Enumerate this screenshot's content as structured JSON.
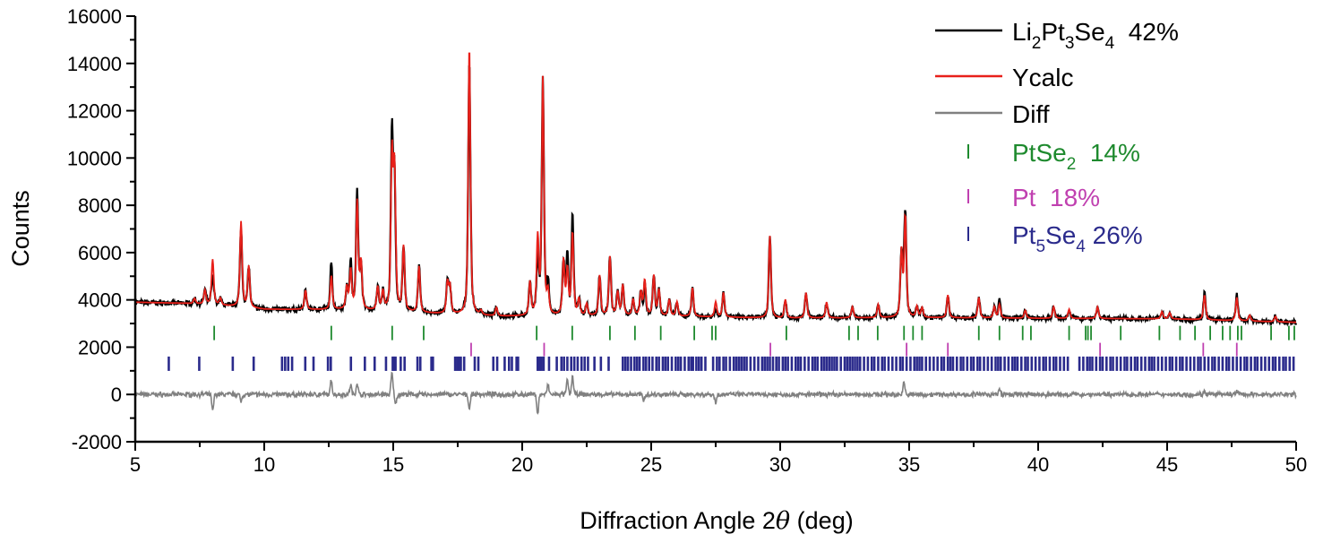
{
  "chart_data": {
    "type": "line",
    "xlabel_parts": [
      "Diffraction Angle 2",
      "θ",
      " (deg)"
    ],
    "ylabel": "Counts",
    "xlim": [
      5,
      50
    ],
    "ylim": [
      -2000,
      16000
    ],
    "x_ticks": [
      "5",
      "10",
      "15",
      "20",
      "25",
      "30",
      "35",
      "40",
      "45",
      "50"
    ],
    "y_ticks": [
      "-2000",
      "0",
      "2000",
      "4000",
      "6000",
      "8000",
      "10000",
      "12000",
      "14000",
      "16000"
    ],
    "grid": false,
    "legend_position": "top-right",
    "colors": {
      "obs": "#000000",
      "calc": "#e8201a",
      "diff": "#808080",
      "PtSe2": "#1e8a2e",
      "Pt": "#c040b0",
      "Pt5Se4": "#2b2b8c"
    },
    "legend": {
      "obs": [
        "Li",
        "2",
        "Pt",
        "3",
        "Se",
        "4",
        "  42%"
      ],
      "calc": "Ycalc",
      "diff": "Diff",
      "PtSe2": [
        "PtSe",
        "2",
        "  14%"
      ],
      "Pt": "Pt  18%",
      "Pt5Se4": [
        "Pt",
        "5",
        "Se",
        "4",
        " 26%"
      ]
    },
    "background": [
      [
        5,
        3900
      ],
      [
        7,
        3850
      ],
      [
        8.5,
        3750
      ],
      [
        10,
        3600
      ],
      [
        13,
        3580
      ],
      [
        16,
        3450
      ],
      [
        19,
        3300
      ],
      [
        25,
        3320
      ],
      [
        30,
        3220
      ],
      [
        35,
        3250
      ],
      [
        40,
        3220
      ],
      [
        45,
        3200
      ],
      [
        50,
        3050
      ]
    ],
    "peaks": [
      [
        7.3,
        4050
      ],
      [
        7.7,
        4400
      ],
      [
        8.0,
        5700
      ],
      [
        8.3,
        4050
      ],
      [
        9.1,
        7300
      ],
      [
        9.4,
        5400
      ],
      [
        11.6,
        4400
      ],
      [
        12.6,
        5000
      ],
      [
        13.2,
        4500
      ],
      [
        13.35,
        5200
      ],
      [
        13.6,
        8100
      ],
      [
        13.75,
        5500
      ],
      [
        14.4,
        4500
      ],
      [
        14.6,
        4300
      ],
      [
        14.95,
        9900
      ],
      [
        15.05,
        9200
      ],
      [
        15.4,
        6200
      ],
      [
        16.0,
        5400
      ],
      [
        17.1,
        4700
      ],
      [
        17.2,
        4500
      ],
      [
        17.95,
        14800
      ],
      [
        18.4,
        3500
      ],
      [
        19.0,
        3650
      ],
      [
        20.3,
        4700
      ],
      [
        20.6,
        6500
      ],
      [
        20.8,
        13300
      ],
      [
        21.0,
        4200
      ],
      [
        21.6,
        5600
      ],
      [
        21.75,
        5200
      ],
      [
        21.95,
        6800
      ],
      [
        22.2,
        4000
      ],
      [
        22.5,
        3800
      ],
      [
        23.0,
        5000
      ],
      [
        23.4,
        5800
      ],
      [
        23.7,
        4300
      ],
      [
        23.9,
        4600
      ],
      [
        24.3,
        4000
      ],
      [
        24.6,
        4300
      ],
      [
        24.75,
        4800
      ],
      [
        25.1,
        5000
      ],
      [
        25.3,
        4400
      ],
      [
        25.7,
        4000
      ],
      [
        26.0,
        3900
      ],
      [
        26.6,
        4500
      ],
      [
        27.5,
        3900
      ],
      [
        27.8,
        4300
      ],
      [
        29.6,
        6700
      ],
      [
        30.2,
        4000
      ],
      [
        31.0,
        4300
      ],
      [
        31.8,
        3900
      ],
      [
        32.8,
        3700
      ],
      [
        33.8,
        3800
      ],
      [
        34.7,
        6000
      ],
      [
        34.85,
        7500
      ],
      [
        35.3,
        3700
      ],
      [
        35.5,
        3650
      ],
      [
        36.5,
        4200
      ],
      [
        37.7,
        4100
      ],
      [
        38.3,
        3700
      ],
      [
        38.5,
        3800
      ],
      [
        39.5,
        3550
      ],
      [
        40.6,
        3700
      ],
      [
        41.2,
        3600
      ],
      [
        42.3,
        3700
      ],
      [
        44.8,
        3500
      ],
      [
        45.1,
        3450
      ],
      [
        46.45,
        4200
      ],
      [
        47.7,
        4100
      ],
      [
        48.2,
        3350
      ],
      [
        49.2,
        3300
      ]
    ],
    "diff_features": [
      [
        8.0,
        -700
      ],
      [
        9.1,
        -300
      ],
      [
        12.6,
        600
      ],
      [
        13.35,
        400
      ],
      [
        13.6,
        500
      ],
      [
        14.95,
        900
      ],
      [
        15.1,
        -400
      ],
      [
        17.95,
        -600
      ],
      [
        20.6,
        -800
      ],
      [
        21.0,
        400
      ],
      [
        21.75,
        600
      ],
      [
        21.95,
        800
      ],
      [
        24.7,
        -250
      ],
      [
        27.5,
        -350
      ],
      [
        34.8,
        500
      ],
      [
        38.5,
        200
      ],
      [
        46.45,
        150
      ],
      [
        47.7,
        150
      ]
    ],
    "reflections": {
      "PtSe2": [
        8.06,
        12.6,
        14.96,
        16.18,
        20.56,
        21.94,
        23.4,
        24.37,
        25.37,
        26.67,
        27.36,
        27.5,
        30.24,
        32.67,
        33.02,
        33.78,
        34.8,
        35.15,
        35.5,
        37.7,
        38.5,
        39.4,
        39.72,
        41.2,
        41.84,
        41.93,
        42.05,
        43.2,
        44.7,
        45.5,
        46.08,
        46.67,
        47.15,
        47.44,
        47.74,
        47.88,
        49.03,
        49.72,
        49.93
      ],
      "Pt": [
        18.02,
        20.85,
        29.62,
        34.9,
        36.5,
        42.4,
        46.4,
        47.7
      ],
      "Pt5Se4": [
        6.3,
        7.48,
        8.78,
        9.59,
        10.69,
        10.81,
        10.93,
        11.08,
        11.59,
        11.91,
        12.47,
        12.58,
        13.36,
        13.9,
        14.28,
        14.72,
        14.98,
        15.03,
        15.09,
        15.29,
        15.44,
        15.94,
        16.05,
        16.48,
        16.54,
        17.4,
        17.48,
        17.55,
        17.62,
        17.75,
        18.16,
        18.3,
        18.88,
        19.03,
        19.32,
        19.49,
        19.6,
        19.78,
        19.84,
        20.6,
        20.68,
        20.75,
        20.83,
        21.04,
        21.34,
        21.52,
        21.62,
        21.75,
        21.9,
        22.02,
        22.15,
        22.3,
        22.42,
        22.55,
        22.8,
        23.05,
        23.35,
        23.9,
        24.0,
        24.1,
        24.22,
        24.35,
        24.45,
        24.55,
        24.7,
        24.8,
        24.92,
        25.05,
        25.2,
        25.3,
        25.45,
        25.55,
        25.65,
        25.8,
        25.95,
        26.05,
        26.15,
        26.3,
        26.45,
        26.55,
        26.62,
        26.75,
        26.85,
        26.95,
        27.1,
        27.4,
        27.55,
        27.65,
        27.8,
        27.9,
        28.05,
        28.2,
        28.3,
        28.4,
        28.5,
        28.6,
        28.7,
        28.85,
        29.0,
        29.15,
        29.3,
        29.4,
        29.5,
        29.6,
        29.72,
        29.85,
        29.95,
        30.1,
        30.2,
        30.3,
        30.45,
        30.6,
        30.7,
        30.8,
        30.95,
        31.1,
        31.25,
        31.35,
        31.45,
        31.6,
        31.7,
        31.8,
        31.9,
        32.0,
        32.1,
        32.2,
        32.35,
        32.5,
        32.6,
        32.7,
        32.8,
        32.9,
        33.0,
        33.1,
        33.25,
        33.4,
        33.55,
        33.65,
        33.8,
        33.95,
        34.05,
        34.2,
        34.35,
        34.5,
        34.65,
        34.75,
        34.9,
        35.05,
        35.2,
        35.3,
        35.4,
        35.5,
        35.65,
        35.8,
        35.95,
        36.1,
        36.25,
        36.35,
        36.5,
        36.6,
        36.7,
        36.85,
        37.0,
        37.1,
        37.25,
        37.4,
        37.5,
        37.65,
        37.75,
        37.9,
        38.05,
        38.2,
        38.35,
        38.45,
        38.55,
        38.7,
        38.85,
        39.0,
        39.1,
        39.2,
        39.35,
        39.5,
        39.6,
        39.75,
        39.9,
        40.05,
        40.2,
        40.3,
        40.45,
        40.6,
        40.7,
        40.85,
        41.0,
        41.15,
        41.6,
        41.75,
        41.9,
        42.0,
        42.1,
        42.25,
        42.4,
        42.5,
        42.65,
        42.8,
        42.9,
        43.05,
        43.2,
        43.35,
        43.45,
        43.6,
        43.75,
        43.85,
        44.0,
        44.15,
        44.3,
        44.4,
        44.5,
        44.65,
        44.8,
        44.95,
        45.1,
        45.2,
        45.35,
        45.5,
        45.6,
        45.75,
        45.9,
        46.05,
        46.2,
        46.3,
        46.45,
        46.6,
        46.75,
        46.85,
        47.0,
        47.15,
        47.3,
        47.4,
        47.55,
        47.7,
        47.85,
        48.0,
        48.1,
        48.25,
        48.4,
        48.5,
        48.65,
        48.8,
        48.95,
        49.1,
        49.2,
        49.35,
        49.5,
        49.6,
        49.75,
        49.9
      ]
    },
    "reflection_levels": {
      "PtSe2": 2600,
      "Pt": 1900,
      "Pt5Se4": 1300
    }
  }
}
